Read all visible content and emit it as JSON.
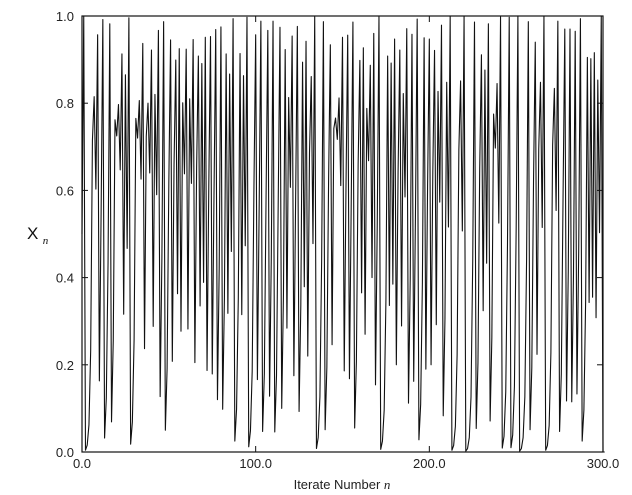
{
  "chart_data": {
    "type": "line",
    "title": "",
    "xlabel": "Iterate Number",
    "xlabel_variable": "n",
    "ylabel": "X",
    "ylabel_subscript": "n",
    "xlim": [
      0,
      300
    ],
    "ylim": [
      0,
      1
    ],
    "x_ticks": [
      0,
      100,
      200,
      300
    ],
    "x_tick_labels": [
      "0.0",
      "100.0",
      "200.0",
      "300.0"
    ],
    "y_ticks": [
      0,
      0.2,
      0.4,
      0.6,
      0.8,
      1.0
    ],
    "y_tick_labels": [
      "0.0",
      "0.2",
      "0.4",
      "0.6",
      "0.8",
      "1.0"
    ],
    "grid": false,
    "legend": "none",
    "line_color": "#111111",
    "series": [
      {
        "x_start": 0,
        "x_step": 1,
        "values": [
          0.5,
          0.999,
          0.004,
          0.016,
          0.062,
          0.233,
          0.715,
          0.815,
          0.603,
          0.957,
          0.163,
          0.545,
          0.992,
          0.032,
          0.124,
          0.434,
          0.982,
          0.069,
          0.256,
          0.762,
          0.725,
          0.797,
          0.647,
          0.913,
          0.316,
          0.865,
          0.467,
          0.996,
          0.018,
          0.069,
          0.258,
          0.765,
          0.72,
          0.806,
          0.626,
          0.937,
          0.237,
          0.724,
          0.8,
          0.64,
          0.922,
          0.288,
          0.82,
          0.59,
          0.967,
          0.127,
          0.444,
          0.987,
          0.05,
          0.191,
          0.617,
          0.945,
          0.208,
          0.659,
          0.899,
          0.363,
          0.925,
          0.277,
          0.801,
          0.638,
          0.924,
          0.282,
          0.81,
          0.616,
          0.946,
          0.205,
          0.652,
          0.908,
          0.335,
          0.891,
          0.389,
          0.951,
          0.187,
          0.608,
          0.953,
          0.179,
          0.588,
          0.969,
          0.12,
          0.421,
          0.975,
          0.098,
          0.352,
          0.913,
          0.318,
          0.867,
          0.46,
          0.994,
          0.025,
          0.098,
          0.353,
          0.914,
          0.315,
          0.863,
          0.473,
          0.997,
          0.012,
          0.049,
          0.185,
          0.604,
          0.957,
          0.166,
          0.555,
          0.988,
          0.047,
          0.18,
          0.591,
          0.967,
          0.128,
          0.446,
          0.988,
          0.046,
          0.176,
          0.58,
          0.974,
          0.1,
          0.361,
          0.923,
          0.284,
          0.813,
          0.607,
          0.954,
          0.175,
          0.577,
          0.976,
          0.093,
          0.337,
          0.894,
          0.379,
          0.942,
          0.22,
          0.686,
          0.861,
          0.478,
          0.998,
          0.008,
          0.033,
          0.127,
          0.443,
          0.987,
          0.051,
          0.195,
          0.628,
          0.934,
          0.246,
          0.742,
          0.766,
          0.717,
          0.812,
          0.611,
          0.951,
          0.186,
          0.605,
          0.956,
          0.168,
          0.559,
          0.986,
          0.055,
          0.208,
          0.659,
          0.898,
          0.365,
          0.927,
          0.27,
          0.788,
          0.668,
          0.887,
          0.4,
          0.96,
          0.154,
          0.52,
          0.998,
          0.006,
          0.025,
          0.096,
          0.348,
          0.908,
          0.336,
          0.892,
          0.385,
          0.947,
          0.2,
          0.64,
          0.922,
          0.289,
          0.822,
          0.585,
          0.971,
          0.112,
          0.397,
          0.958,
          0.162,
          0.542,
          0.993,
          0.028,
          0.109,
          0.388,
          0.95,
          0.19,
          0.615,
          0.947,
          0.2,
          0.641,
          0.921,
          0.292,
          0.827,
          0.573,
          0.979,
          0.083,
          0.305,
          0.848,
          0.516,
          0.999,
          0.004,
          0.015,
          0.059,
          0.223,
          0.693,
          0.851,
          0.507,
          0.999,
          0.002,
          0.008,
          0.033,
          0.126,
          0.442,
          0.986,
          0.054,
          0.204,
          0.649,
          0.911,
          0.324,
          0.876,
          0.433,
          0.982,
          0.071,
          0.263,
          0.775,
          0.697,
          0.845,
          0.525,
          0.998,
          0.009,
          0.036,
          0.138,
          0.475,
          0.997,
          0.01,
          0.039,
          0.151,
          0.513,
          0.999,
          0.002,
          0.008,
          0.033,
          0.127,
          0.443,
          0.987,
          0.051,
          0.193,
          0.622,
          0.94,
          0.224,
          0.695,
          0.848,
          0.515,
          0.999,
          0.004,
          0.015,
          0.061,
          0.228,
          0.704,
          0.834,
          0.554,
          0.988,
          0.047,
          0.179,
          0.587,
          0.97,
          0.117,
          0.414,
          0.97,
          0.115,
          0.407,
          0.965,
          0.133,
          0.46,
          0.994,
          0.025,
          0.096,
          0.346,
          0.905,
          0.343,
          0.902,
          0.355,
          0.916,
          0.308,
          0.853,
          0.503,
          1.0,
          0.0,
          0.0
        ]
      }
    ]
  }
}
